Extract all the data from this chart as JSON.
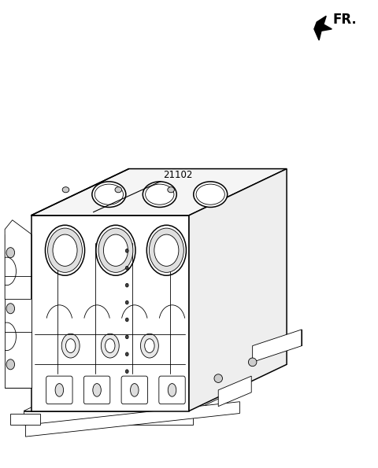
{
  "background_color": "#ffffff",
  "line_color": "#000000",
  "label_text": "21102",
  "fr_text": "FR.",
  "fig_width": 4.8,
  "fig_height": 5.95
}
